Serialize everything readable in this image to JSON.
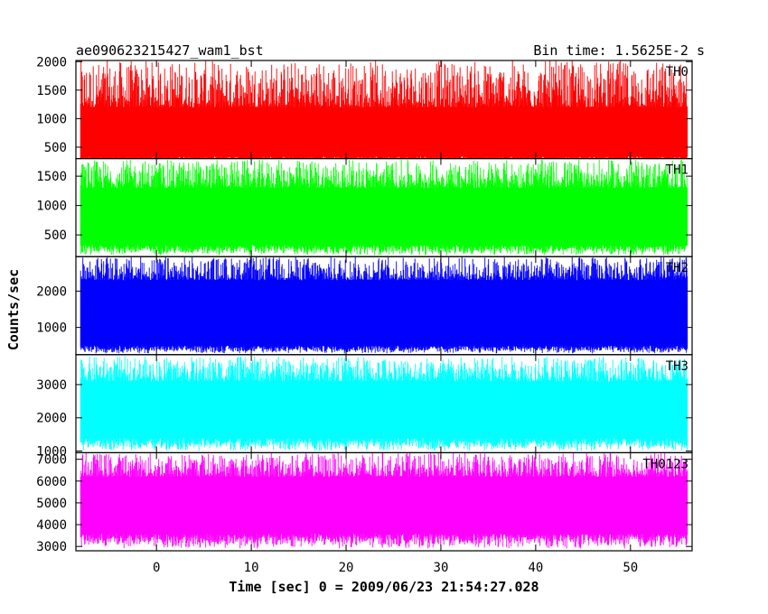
{
  "chart_data": {
    "type": "line",
    "title": "ae090623215427_wam1_bst",
    "subtitle": "Bin time: 1.5625E-2 s",
    "xlabel": "Time [sec] 0 = 2009/06/23 21:54:27.028",
    "ylabel": "Counts/sec",
    "xlim": [
      -8.5,
      56.5
    ],
    "data_x_range": [
      -8,
      56
    ],
    "x_ticks": [
      0,
      10,
      20,
      30,
      40,
      50
    ],
    "grid": false,
    "legend": "none",
    "panels": [
      {
        "name": "TH0",
        "color": "#ff0000",
        "ylim": [
          300,
          2020
        ],
        "y_ticks": [
          500,
          1000,
          1500,
          2000
        ],
        "baseline": 780,
        "lower_envelope": [
          160,
          340
        ],
        "upper_envelope": [
          1200,
          2020
        ]
      },
      {
        "name": "TH1",
        "color": "#00ff00",
        "ylim": [
          130,
          1800
        ],
        "y_ticks": [
          500,
          1000,
          1500
        ],
        "baseline": 780,
        "lower_envelope": [
          150,
          330
        ],
        "upper_envelope": [
          1300,
          1780
        ]
      },
      {
        "name": "TH2",
        "color": "#0000ff",
        "ylim": [
          250,
          2950
        ],
        "y_ticks": [
          1000,
          2000
        ],
        "baseline": 1350,
        "lower_envelope": [
          280,
          500
        ],
        "upper_envelope": [
          2300,
          2950
        ]
      },
      {
        "name": "TH3",
        "color": "#00ffff",
        "ylim": [
          950,
          3900
        ],
        "y_ticks": [
          1000,
          2000,
          3000
        ],
        "baseline": 2350,
        "lower_envelope": [
          1000,
          1400
        ],
        "upper_envelope": [
          3100,
          3850
        ]
      },
      {
        "name": "TH0123",
        "color": "#ff00ff",
        "ylim": [
          2800,
          7300
        ],
        "y_ticks": [
          3000,
          4000,
          5000,
          6000,
          7000
        ],
        "baseline": 5100,
        "lower_envelope": [
          2900,
          3600
        ],
        "upper_envelope": [
          6200,
          7300
        ]
      }
    ]
  }
}
